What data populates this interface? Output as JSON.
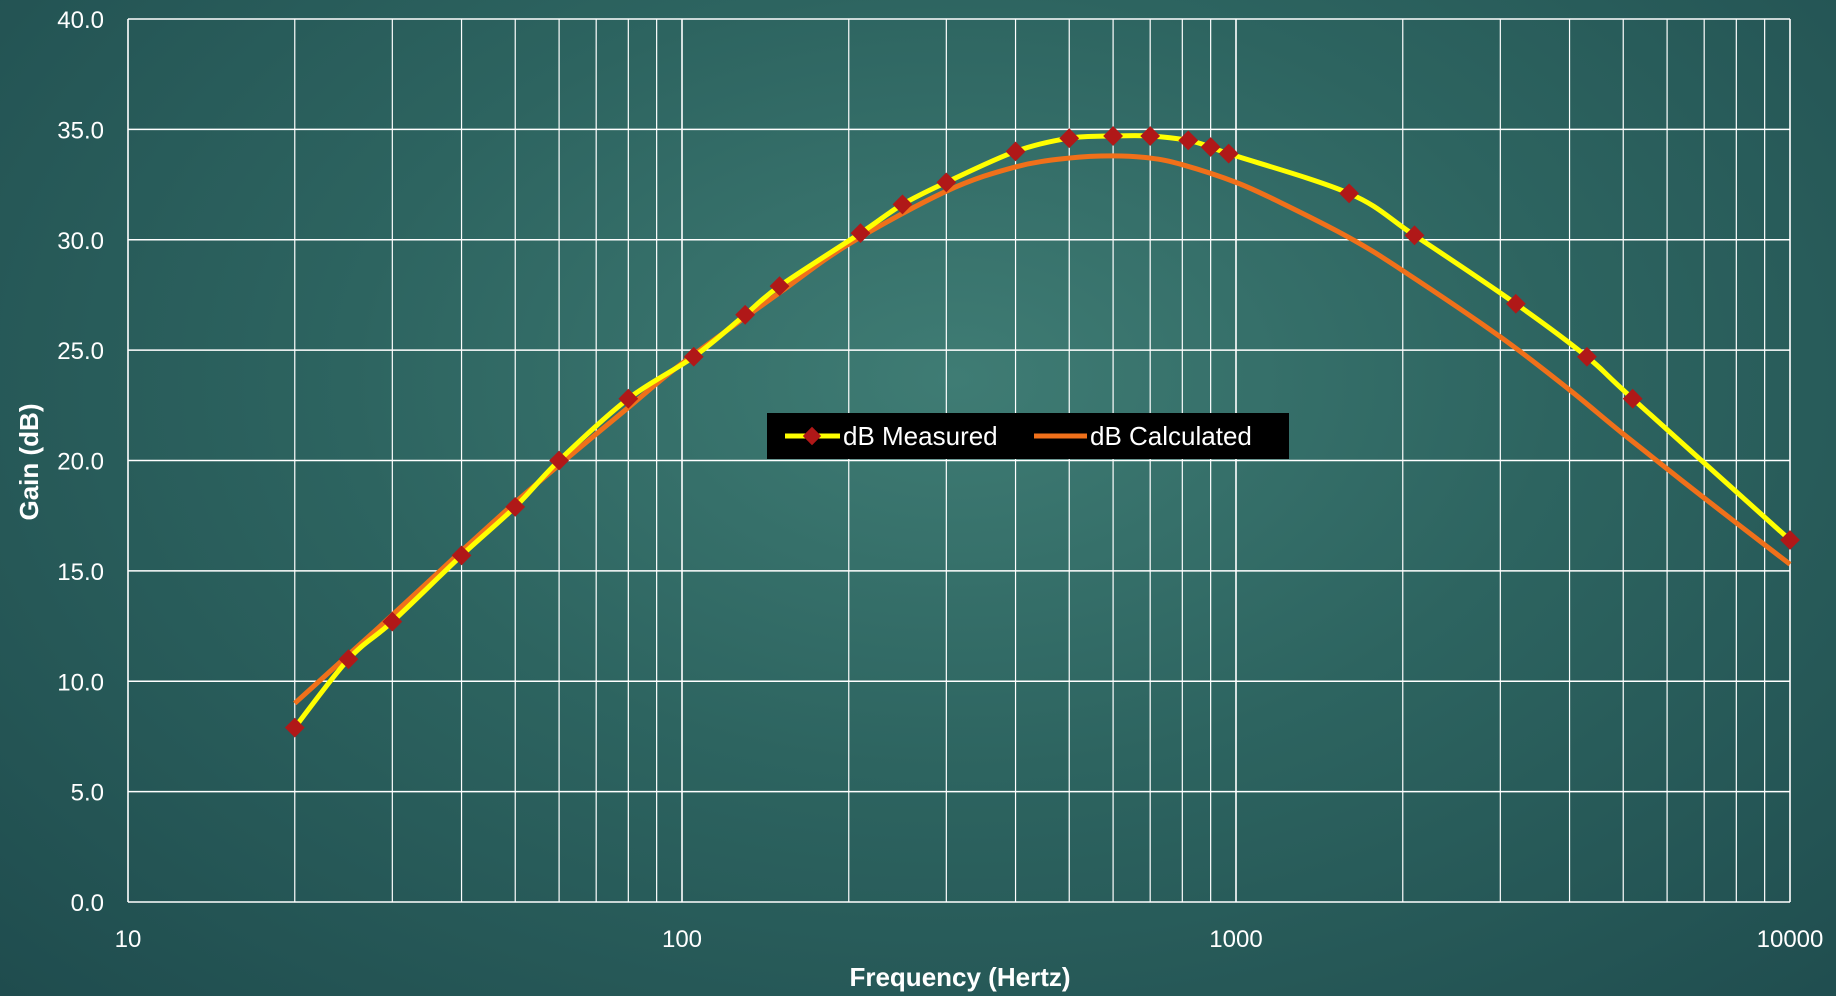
{
  "chart_data": {
    "type": "line",
    "x_scale": "log",
    "xlabel": "Frequency (Hertz)",
    "ylabel": "Gain (dB)",
    "xlim": [
      10,
      10000
    ],
    "ylim": [
      0,
      40
    ],
    "x_ticks": [
      "10",
      "100",
      "1000",
      "10000"
    ],
    "y_ticks": [
      "0.0",
      "5.0",
      "10.0",
      "15.0",
      "20.0",
      "25.0",
      "30.0",
      "35.0",
      "40.0"
    ],
    "grid": true,
    "legend_position": "center",
    "series": [
      {
        "name": "dB Measured",
        "color": "#ffff00",
        "marker": "diamond",
        "marker_color": "#b01818",
        "x": [
          20,
          25,
          30,
          40,
          50,
          60,
          80,
          105,
          130,
          150,
          210,
          250,
          300,
          400,
          500,
          600,
          700,
          820,
          900,
          970,
          1600,
          2100,
          3200,
          4300,
          5200,
          10000
        ],
        "y": [
          7.9,
          11.0,
          12.7,
          15.7,
          17.9,
          20.0,
          22.8,
          24.7,
          26.6,
          27.9,
          30.3,
          31.6,
          32.6,
          34.0,
          34.6,
          34.7,
          34.7,
          34.5,
          34.2,
          33.9,
          32.1,
          30.2,
          27.1,
          24.7,
          22.8,
          16.4
        ]
      },
      {
        "name": "dB Calculated",
        "color": "#f0701a",
        "x": [
          20,
          25,
          30,
          40,
          50,
          60,
          80,
          100,
          150,
          200,
          300,
          400,
          500,
          600,
          700,
          800,
          1000,
          1200,
          1600,
          2000,
          3000,
          4000,
          5000,
          7000,
          10000
        ],
        "y": [
          9.0,
          11.2,
          13.0,
          15.9,
          18.1,
          19.8,
          22.4,
          24.4,
          27.6,
          29.8,
          32.2,
          33.3,
          33.7,
          33.8,
          33.7,
          33.4,
          32.6,
          31.7,
          30.1,
          28.6,
          25.6,
          23.2,
          21.2,
          18.3,
          15.3
        ]
      }
    ]
  }
}
